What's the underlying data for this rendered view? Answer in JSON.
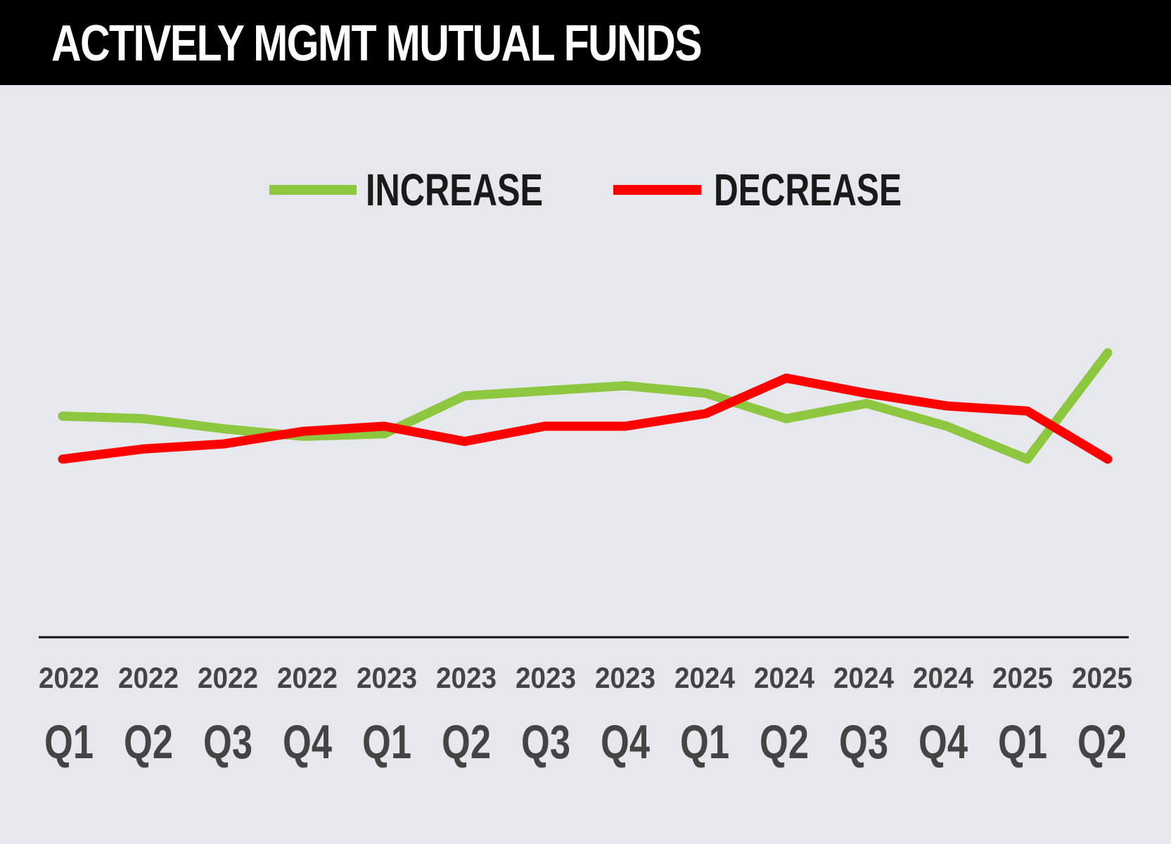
{
  "title": "ACTIVELY MGMT MUTUAL FUNDS",
  "chart_data": {
    "type": "line",
    "title": "ACTIVELY MGMT MUTUAL FUNDS",
    "x": [
      {
        "year": "2022",
        "quarter": "Q1"
      },
      {
        "year": "2022",
        "quarter": "Q2"
      },
      {
        "year": "2022",
        "quarter": "Q3"
      },
      {
        "year": "2022",
        "quarter": "Q4"
      },
      {
        "year": "2023",
        "quarter": "Q1"
      },
      {
        "year": "2023",
        "quarter": "Q2"
      },
      {
        "year": "2023",
        "quarter": "Q3"
      },
      {
        "year": "2023",
        "quarter": "Q4"
      },
      {
        "year": "2024",
        "quarter": "Q1"
      },
      {
        "year": "2024",
        "quarter": "Q2"
      },
      {
        "year": "2024",
        "quarter": "Q3"
      },
      {
        "year": "2024",
        "quarter": "Q4"
      },
      {
        "year": "2025",
        "quarter": "Q1"
      },
      {
        "year": "2025",
        "quarter": "Q2"
      }
    ],
    "ylim": [
      0,
      100
    ],
    "series": [
      {
        "name": "INCREASE",
        "color": "#8dc63f",
        "values": [
          44,
          43,
          39,
          36,
          37,
          52,
          54,
          56,
          53,
          43,
          49,
          40,
          27,
          69
        ]
      },
      {
        "name": "DECREASE",
        "color": "#ff0000",
        "values": [
          27,
          31,
          33,
          38,
          40,
          34,
          40,
          40,
          45,
          59,
          53,
          48,
          46,
          27
        ]
      }
    ],
    "legend_position": "top",
    "grid": false,
    "xlabel": "",
    "ylabel": ""
  }
}
